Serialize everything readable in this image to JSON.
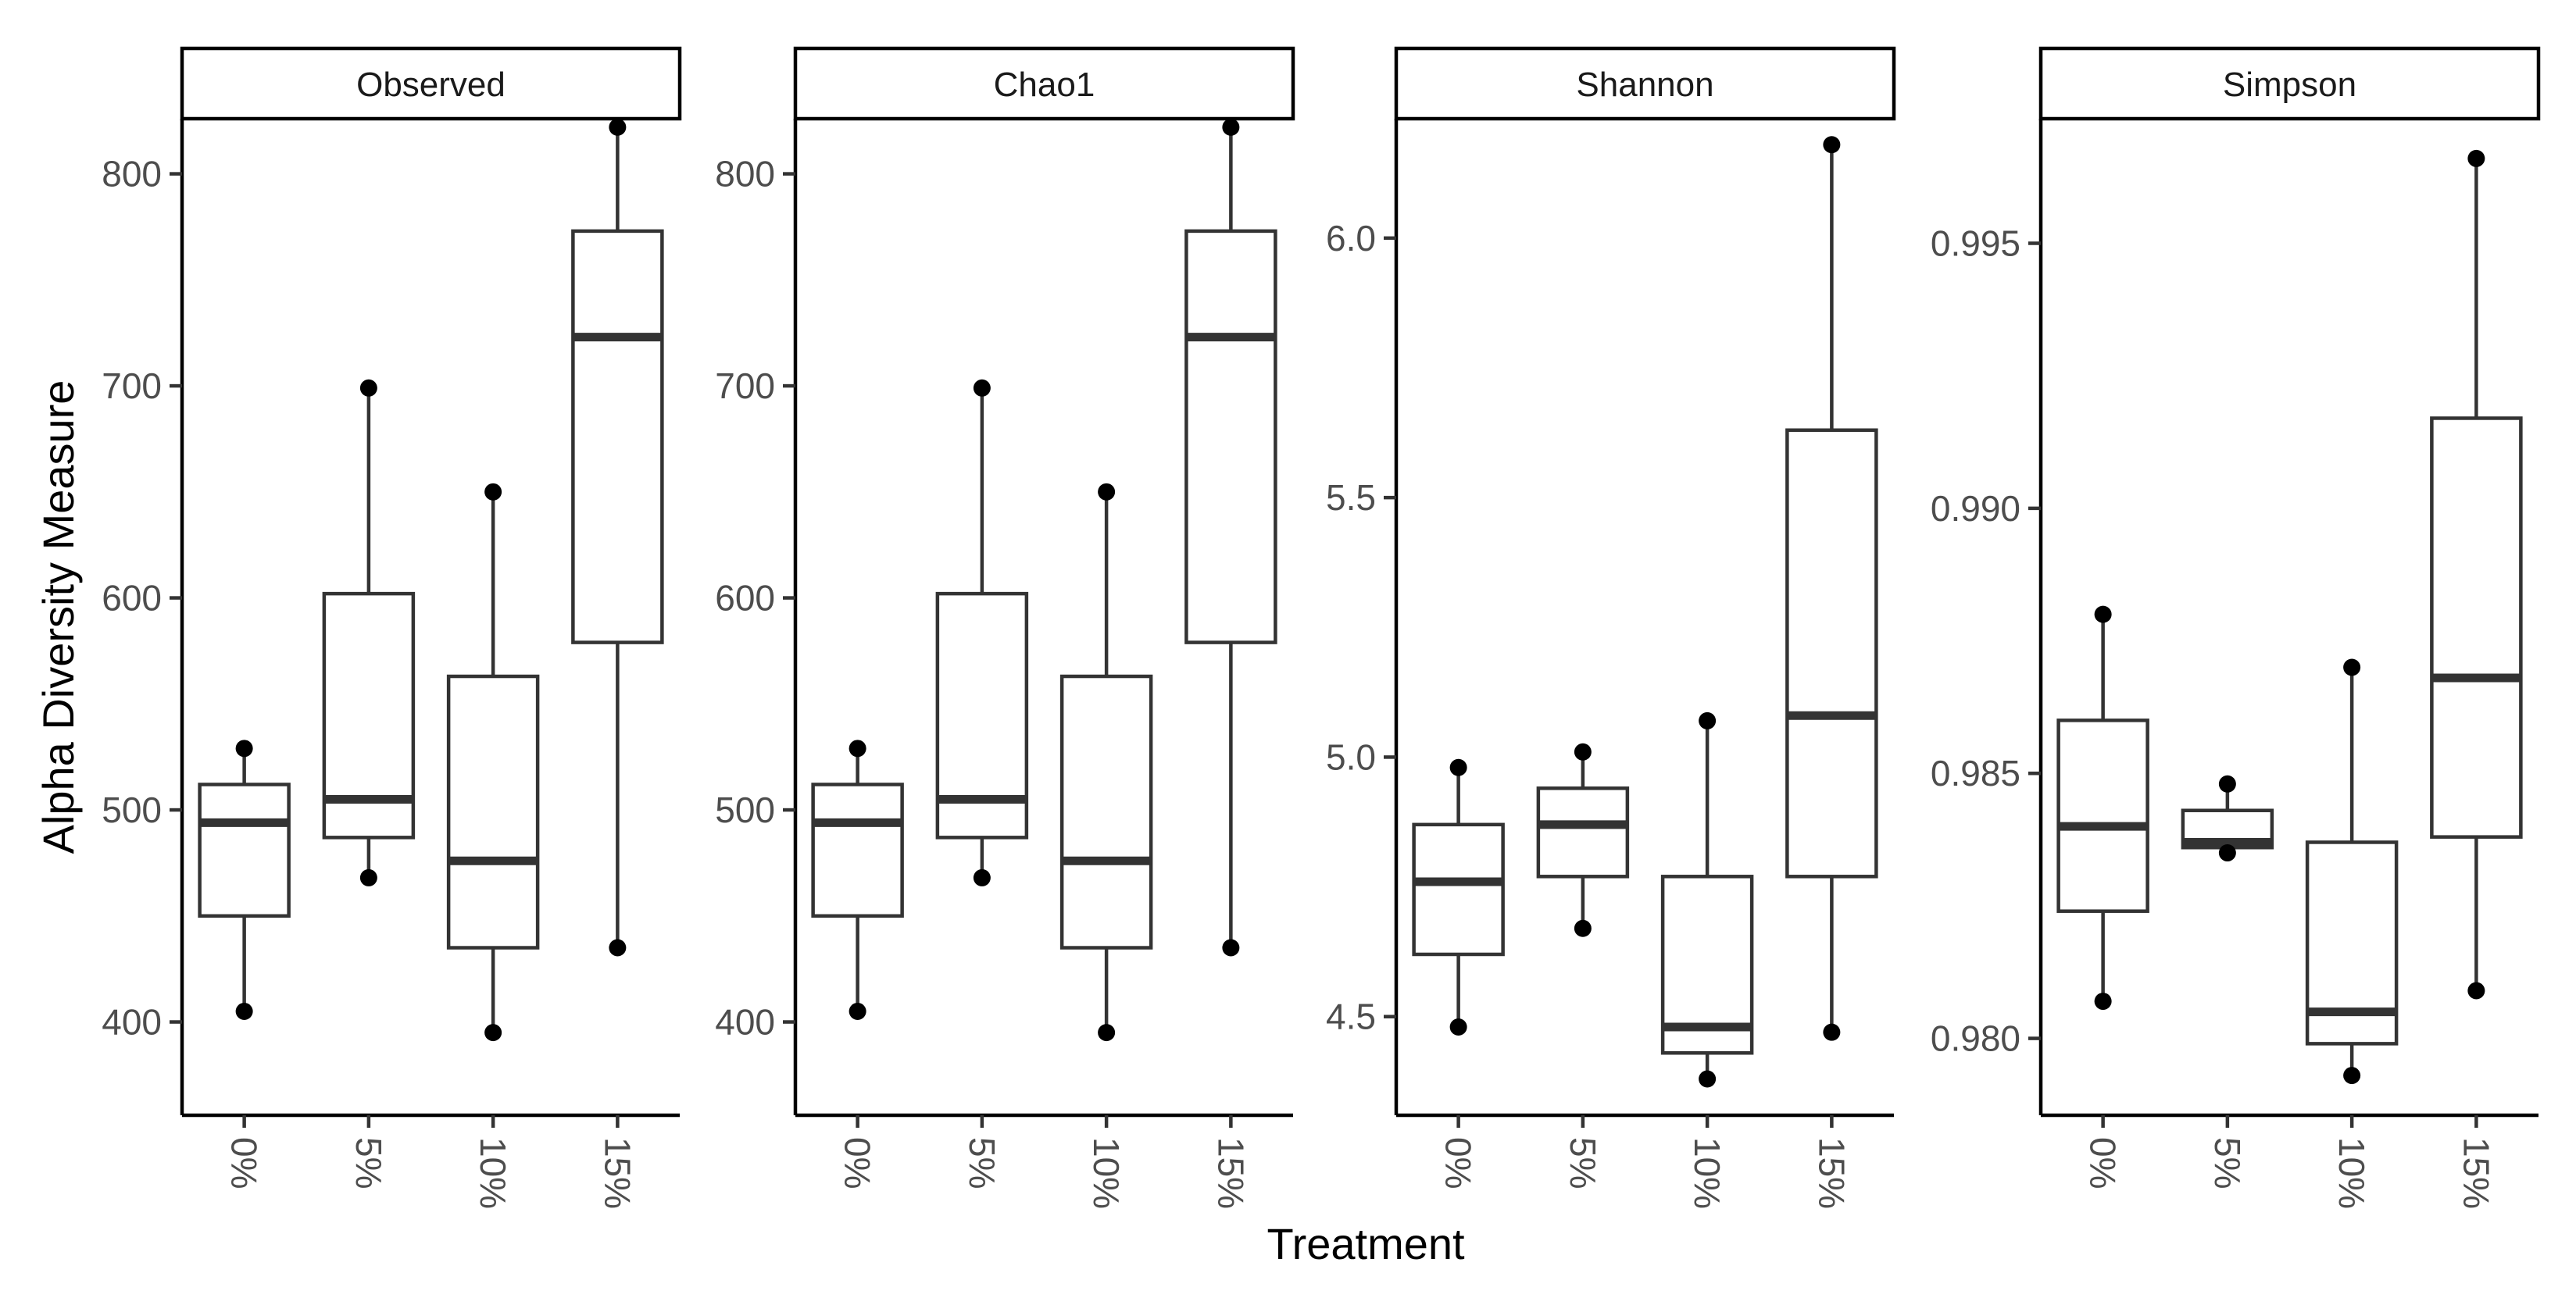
{
  "chart_data": {
    "type": "boxplot",
    "xlabel": "Treatment",
    "ylabel": "Alpha Diversity Measure",
    "categories": [
      "0%",
      "5%",
      "10%",
      "15%"
    ],
    "facets": [
      {
        "name": "Observed",
        "ylim": [
          356,
          826
        ],
        "yticks": [
          400,
          500,
          600,
          700,
          800
        ],
        "ytick_labels": [
          "400",
          "500",
          "600",
          "700",
          "800"
        ],
        "boxes": [
          {
            "category": "0%",
            "min": 405,
            "q1": 450,
            "median": 494,
            "q3": 512,
            "max": 529
          },
          {
            "category": "5%",
            "min": 468,
            "q1": 487,
            "median": 505,
            "q3": 602,
            "max": 699
          },
          {
            "category": "10%",
            "min": 395,
            "q1": 435,
            "median": 476,
            "q3": 563,
            "max": 650
          },
          {
            "category": "15%",
            "min": 435,
            "q1": 579,
            "median": 723,
            "q3": 773,
            "max": 822
          }
        ]
      },
      {
        "name": "Chao1",
        "ylim": [
          356,
          826
        ],
        "yticks": [
          400,
          500,
          600,
          700,
          800
        ],
        "ytick_labels": [
          "400",
          "500",
          "600",
          "700",
          "800"
        ],
        "boxes": [
          {
            "category": "0%",
            "min": 405,
            "q1": 450,
            "median": 494,
            "q3": 512,
            "max": 529
          },
          {
            "category": "5%",
            "min": 468,
            "q1": 487,
            "median": 505,
            "q3": 602,
            "max": 699
          },
          {
            "category": "10%",
            "min": 395,
            "q1": 435,
            "median": 476,
            "q3": 563,
            "max": 650
          },
          {
            "category": "15%",
            "min": 435,
            "q1": 579,
            "median": 723,
            "q3": 773,
            "max": 822
          }
        ]
      },
      {
        "name": "Shannon",
        "ylim": [
          4.31,
          6.23
        ],
        "yticks": [
          4.5,
          5.0,
          5.5,
          6.0
        ],
        "ytick_labels": [
          "4.5",
          "5.0",
          "5.5",
          "6.0"
        ],
        "boxes": [
          {
            "category": "0%",
            "min": 4.48,
            "q1": 4.62,
            "median": 4.76,
            "q3": 4.87,
            "max": 4.98
          },
          {
            "category": "5%",
            "min": 4.67,
            "q1": 4.77,
            "median": 4.87,
            "q3": 4.94,
            "max": 5.01
          },
          {
            "category": "10%",
            "min": 4.38,
            "q1": 4.43,
            "median": 4.48,
            "q3": 4.77,
            "max": 5.07
          },
          {
            "category": "15%",
            "min": 4.47,
            "q1": 4.77,
            "median": 5.08,
            "q3": 5.63,
            "max": 6.18
          }
        ]
      },
      {
        "name": "Simpson",
        "ylim": [
          0.97855,
          0.99735
        ],
        "yticks": [
          0.98,
          0.985,
          0.99,
          0.995
        ],
        "ytick_labels": [
          "0.980",
          "0.985",
          "0.990",
          "0.995"
        ],
        "boxes": [
          {
            "category": "0%",
            "min": 0.9807,
            "q1": 0.9824,
            "median": 0.984,
            "q3": 0.986,
            "max": 0.988
          },
          {
            "category": "5%",
            "min": 0.9835,
            "q1": 0.9836,
            "median": 0.9837,
            "q3": 0.9843,
            "max": 0.9848
          },
          {
            "category": "10%",
            "min": 0.9793,
            "q1": 0.9799,
            "median": 0.9805,
            "q3": 0.9837,
            "max": 0.987
          },
          {
            "category": "15%",
            "min": 0.9809,
            "q1": 0.9838,
            "median": 0.9868,
            "q3": 0.9917,
            "max": 0.9966
          }
        ]
      }
    ]
  }
}
